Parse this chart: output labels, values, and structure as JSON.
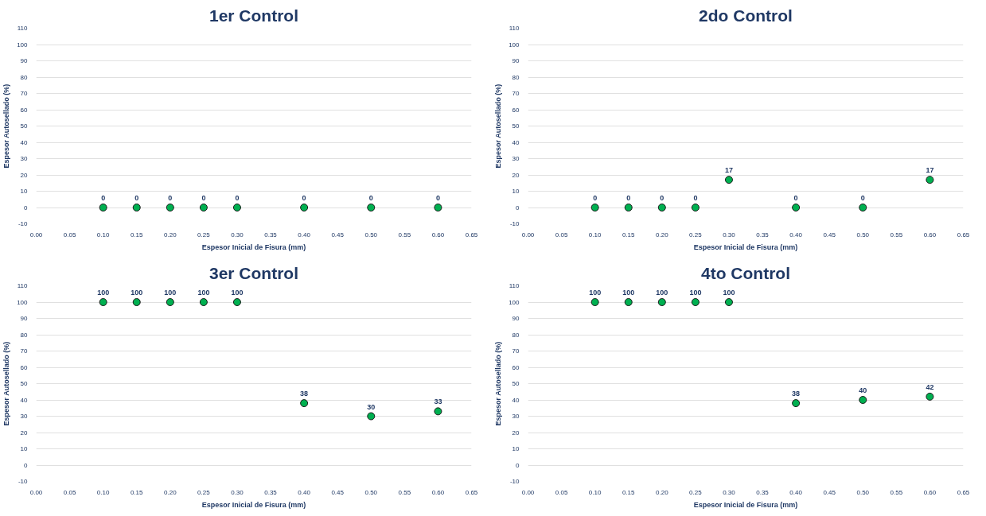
{
  "chart_data": [
    {
      "type": "scatter",
      "title": "1er Control",
      "xlabel": "Espesor Inicial de Fisura (mm)",
      "ylabel": "Espesor Autosellado (%)",
      "x": [
        0.1,
        0.15,
        0.2,
        0.25,
        0.3,
        0.4,
        0.5,
        0.6
      ],
      "values": [
        0,
        0,
        0,
        0,
        0,
        0,
        0,
        0
      ],
      "color": "#00b050",
      "marker": "circle",
      "data_labels": true,
      "grid": "y",
      "xlim": [
        0,
        0.65
      ],
      "ylim": [
        -10,
        110
      ],
      "xticks": [
        {
          "value": 0,
          "label": "0.00"
        },
        {
          "value": 0.05,
          "label": "0.05"
        },
        {
          "value": 0.1,
          "label": "0.10"
        },
        {
          "value": 0.15,
          "label": "0.15"
        },
        {
          "value": 0.2,
          "label": "0.20"
        },
        {
          "value": 0.25,
          "label": "0.25"
        },
        {
          "value": 0.3,
          "label": "0.30"
        },
        {
          "value": 0.35,
          "label": "0.35"
        },
        {
          "value": 0.4,
          "label": "0.40"
        },
        {
          "value": 0.45,
          "label": "0.45"
        },
        {
          "value": 0.5,
          "label": "0.50"
        },
        {
          "value": 0.55,
          "label": "0.55"
        },
        {
          "value": 0.6,
          "label": "0.60"
        },
        {
          "value": 0.65,
          "label": "0.65"
        }
      ],
      "yticks": [
        -10,
        0,
        10,
        20,
        30,
        40,
        50,
        60,
        70,
        80,
        90,
        100,
        110
      ]
    },
    {
      "type": "scatter",
      "title": "2do Control",
      "xlabel": "Espesor Inicial de Fisura (mm)",
      "ylabel": "Espesor Autosellado (%)",
      "x": [
        0.1,
        0.15,
        0.2,
        0.25,
        0.3,
        0.4,
        0.5,
        0.6
      ],
      "values": [
        0,
        0,
        0,
        0,
        17,
        0,
        0,
        17
      ],
      "color": "#00b050",
      "marker": "circle",
      "data_labels": true,
      "grid": "y",
      "xlim": [
        0,
        0.65
      ],
      "ylim": [
        -10,
        110
      ],
      "xticks": [
        {
          "value": 0,
          "label": "0.00"
        },
        {
          "value": 0.05,
          "label": "0.05"
        },
        {
          "value": 0.1,
          "label": "0.10"
        },
        {
          "value": 0.15,
          "label": "0.15"
        },
        {
          "value": 0.2,
          "label": "0.20"
        },
        {
          "value": 0.25,
          "label": "0.25"
        },
        {
          "value": 0.3,
          "label": "0.30"
        },
        {
          "value": 0.35,
          "label": "0.35"
        },
        {
          "value": 0.4,
          "label": "0.40"
        },
        {
          "value": 0.45,
          "label": "0.45"
        },
        {
          "value": 0.5,
          "label": "0.50"
        },
        {
          "value": 0.55,
          "label": "0.55"
        },
        {
          "value": 0.6,
          "label": "0.60"
        },
        {
          "value": 0.65,
          "label": "0.65"
        }
      ],
      "yticks": [
        -10,
        0,
        10,
        20,
        30,
        40,
        50,
        60,
        70,
        80,
        90,
        100,
        110
      ]
    },
    {
      "type": "scatter",
      "title": "3er Control",
      "xlabel": "Espesor Inicial de Fisura (mm)",
      "ylabel": "Espesor Autosellado (%)",
      "x": [
        0.1,
        0.15,
        0.2,
        0.25,
        0.3,
        0.4,
        0.5,
        0.6
      ],
      "values": [
        100,
        100,
        100,
        100,
        100,
        38,
        30,
        33
      ],
      "color": "#00b050",
      "marker": "circle",
      "data_labels": true,
      "grid": "y",
      "xlim": [
        0,
        0.65
      ],
      "ylim": [
        -10,
        110
      ],
      "xticks": [
        {
          "value": 0,
          "label": "0.00"
        },
        {
          "value": 0.05,
          "label": "0.05"
        },
        {
          "value": 0.1,
          "label": "0.10"
        },
        {
          "value": 0.15,
          "label": "0.15"
        },
        {
          "value": 0.2,
          "label": "0.20"
        },
        {
          "value": 0.25,
          "label": "0.25"
        },
        {
          "value": 0.3,
          "label": "0.30"
        },
        {
          "value": 0.35,
          "label": "0.35"
        },
        {
          "value": 0.4,
          "label": "0.40"
        },
        {
          "value": 0.45,
          "label": "0.45"
        },
        {
          "value": 0.5,
          "label": "0.50"
        },
        {
          "value": 0.55,
          "label": "0.55"
        },
        {
          "value": 0.6,
          "label": "0.60"
        },
        {
          "value": 0.65,
          "label": "0.65"
        }
      ],
      "yticks": [
        -10,
        0,
        10,
        20,
        30,
        40,
        50,
        60,
        70,
        80,
        90,
        100,
        110
      ]
    },
    {
      "type": "scatter",
      "title": "4to Control",
      "xlabel": "Espesor Inicial de Fisura (mm)",
      "ylabel": "Espesor Autosellado (%)",
      "x": [
        0.1,
        0.15,
        0.2,
        0.25,
        0.3,
        0.4,
        0.5,
        0.6
      ],
      "values": [
        100,
        100,
        100,
        100,
        100,
        38,
        40,
        42
      ],
      "color": "#00b050",
      "marker": "circle",
      "data_labels": true,
      "grid": "y",
      "xlim": [
        0,
        0.65
      ],
      "ylim": [
        -10,
        110
      ],
      "xticks": [
        {
          "value": 0,
          "label": "0.00"
        },
        {
          "value": 0.05,
          "label": "0.05"
        },
        {
          "value": 0.1,
          "label": "0.10"
        },
        {
          "value": 0.15,
          "label": "0.15"
        },
        {
          "value": 0.2,
          "label": "0.20"
        },
        {
          "value": 0.25,
          "label": "0.25"
        },
        {
          "value": 0.3,
          "label": "0.30"
        },
        {
          "value": 0.35,
          "label": "0.35"
        },
        {
          "value": 0.4,
          "label": "0.40"
        },
        {
          "value": 0.45,
          "label": "0.45"
        },
        {
          "value": 0.5,
          "label": "0.50"
        },
        {
          "value": 0.55,
          "label": "0.55"
        },
        {
          "value": 0.6,
          "label": "0.60"
        },
        {
          "value": 0.65,
          "label": "0.65"
        }
      ],
      "yticks": [
        -10,
        0,
        10,
        20,
        30,
        40,
        50,
        60,
        70,
        80,
        90,
        100,
        110
      ]
    }
  ]
}
